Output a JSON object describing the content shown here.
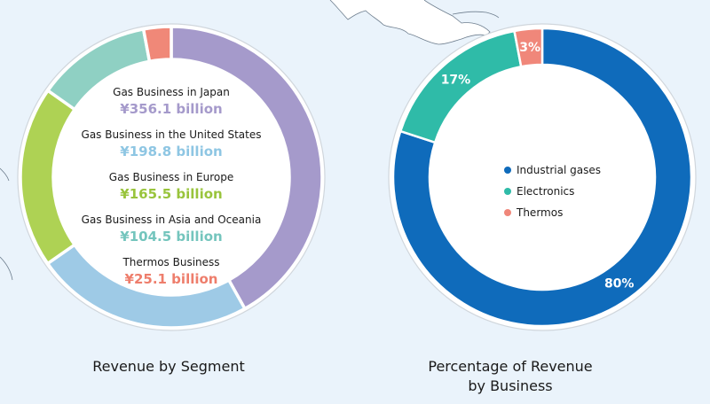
{
  "chart_data": [
    {
      "type": "pie",
      "title": "Revenue by Segment",
      "unit": "¥ billion",
      "slices": [
        {
          "label": "Gas Business in Japan",
          "value": 356.1,
          "value_label": "¥356.1 billion",
          "color": "#a59acb"
        },
        {
          "label": "Gas Business in the United States",
          "value": 198.8,
          "value_label": "¥198.8 billion",
          "color": "#9ecae6"
        },
        {
          "label": "Gas Business in Europe",
          "value": 165.5,
          "value_label": "¥165.5 billion",
          "color": "#aed254"
        },
        {
          "label": "Gas Business in Asia and Oceania",
          "value": 104.5,
          "value_label": "¥104.5 billion",
          "color": "#8fd0c3"
        },
        {
          "label": "Thermos Business",
          "value": 25.1,
          "value_label": "¥25.1 billion",
          "color": "#f08878"
        }
      ],
      "value_colors": [
        "#a59acb",
        "#8ec6e3",
        "#99c43c",
        "#74c5bd",
        "#ee7e6c"
      ]
    },
    {
      "type": "pie",
      "title": "Percentage of Revenue\nby Business",
      "slices": [
        {
          "label": "Industrial gases",
          "value": 80,
          "value_label": "80%",
          "color": "#0f6bbb"
        },
        {
          "label": "Electronics",
          "value": 17,
          "value_label": "17%",
          "color": "#2fbba8"
        },
        {
          "label": "Thermos",
          "value": 3,
          "value_label": "3%",
          "color": "#f0877a"
        }
      ]
    }
  ]
}
